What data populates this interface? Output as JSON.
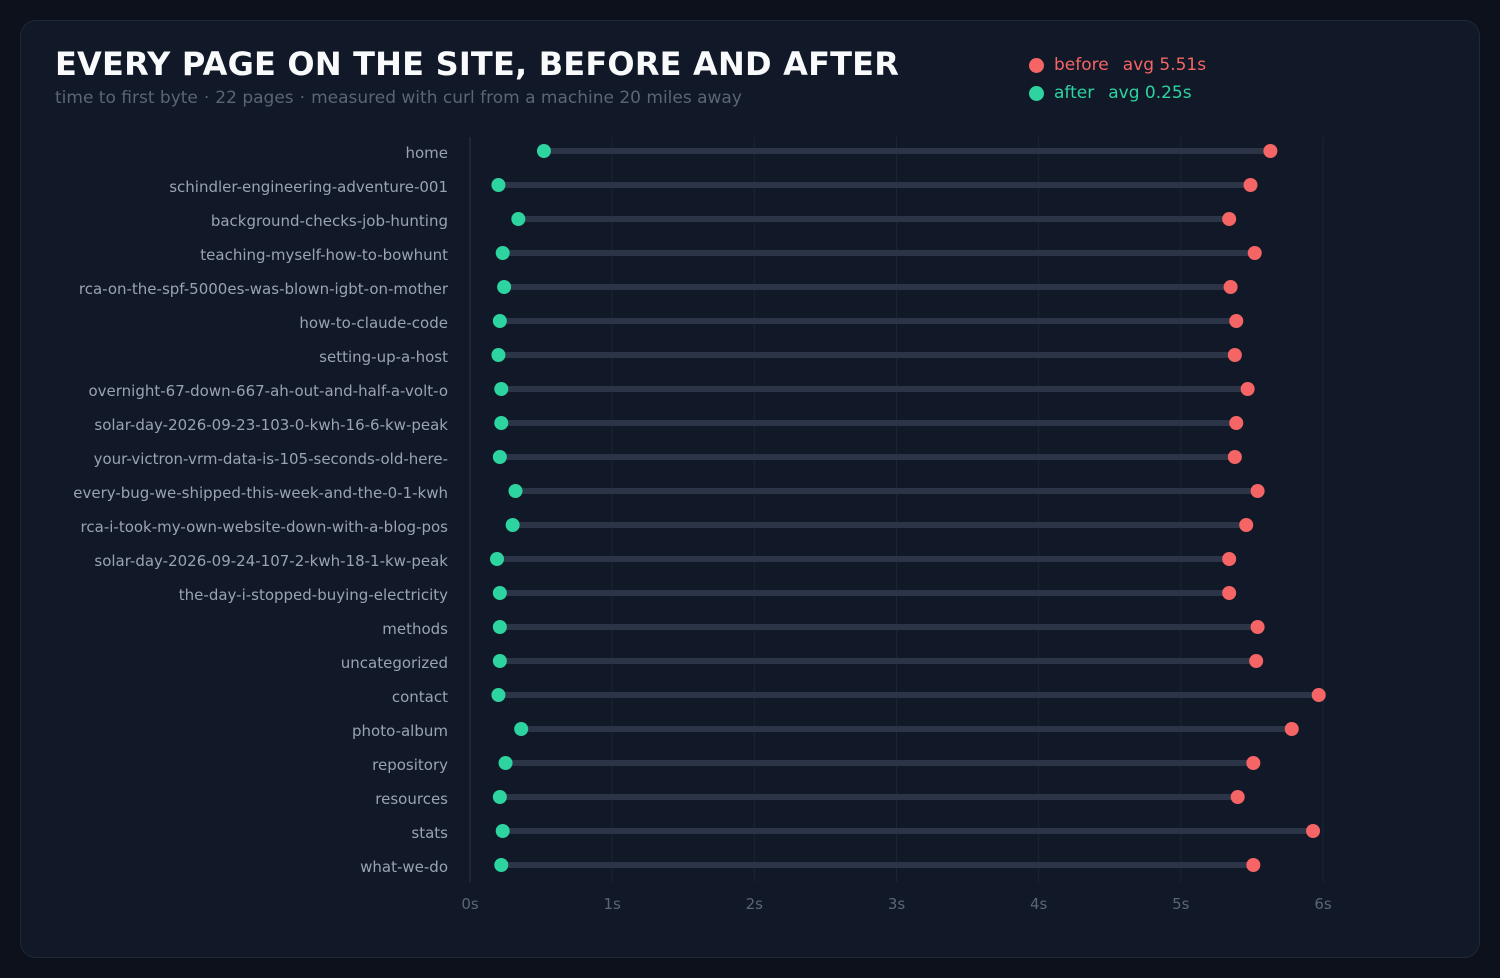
{
  "header": {
    "title": "EVERY PAGE ON THE SITE, BEFORE AND AFTER",
    "subtitle_metric": "time to first byte",
    "subtitle_separator": "·",
    "subtitle_count": "22 pages",
    "subtitle_method": "measured with curl from a machine 20 miles away"
  },
  "legend": {
    "before_label": "before",
    "before_avg": "avg 5.51s",
    "after_label": "after",
    "after_avg": "avg 0.25s"
  },
  "colors": {
    "before": "#f56565",
    "after": "#2dd4a0",
    "connector": "#2b3547",
    "gridline": "#1d2535",
    "axis_line": "#2b3547",
    "label": "#9aa3b2",
    "tick": "#5b6576"
  },
  "chart_data": {
    "type": "dumbbell",
    "title": "EVERY PAGE ON THE SITE, BEFORE AND AFTER",
    "xlabel": "",
    "ylabel": "",
    "xlim": [
      0,
      6
    ],
    "x_ticks": [
      "0s",
      "1s",
      "2s",
      "3s",
      "4s",
      "5s",
      "6s"
    ],
    "grid": true,
    "legend_position": "top-right",
    "categories": [
      "home",
      "schindler-engineering-adventure-001",
      "background-checks-job-hunting",
      "teaching-myself-how-to-bowhunt",
      "rca-on-the-spf-5000es-was-blown-igbt-on-mother",
      "how-to-claude-code",
      "setting-up-a-host",
      "overnight-67-down-667-ah-out-and-half-a-volt-o",
      "solar-day-2026-09-23-103-0-kwh-16-6-kw-peak",
      "your-victron-vrm-data-is-105-seconds-old-here-",
      "every-bug-we-shipped-this-week-and-the-0-1-kwh",
      "rca-i-took-my-own-website-down-with-a-blog-pos",
      "solar-day-2026-09-24-107-2-kwh-18-1-kw-peak",
      "the-day-i-stopped-buying-electricity",
      "methods",
      "uncategorized",
      "contact",
      "photo-album",
      "repository",
      "resources",
      "stats",
      "what-we-do"
    ],
    "series": [
      {
        "name": "before",
        "values": [
          5.63,
          5.49,
          5.34,
          5.52,
          5.35,
          5.39,
          5.38,
          5.47,
          5.39,
          5.38,
          5.54,
          5.46,
          5.34,
          5.34,
          5.54,
          5.53,
          5.97,
          5.78,
          5.51,
          5.4,
          5.93,
          5.51
        ]
      },
      {
        "name": "after",
        "values": [
          0.52,
          0.2,
          0.34,
          0.23,
          0.24,
          0.21,
          0.2,
          0.22,
          0.22,
          0.21,
          0.32,
          0.3,
          0.19,
          0.21,
          0.21,
          0.21,
          0.2,
          0.36,
          0.25,
          0.21,
          0.23,
          0.22
        ]
      }
    ]
  }
}
